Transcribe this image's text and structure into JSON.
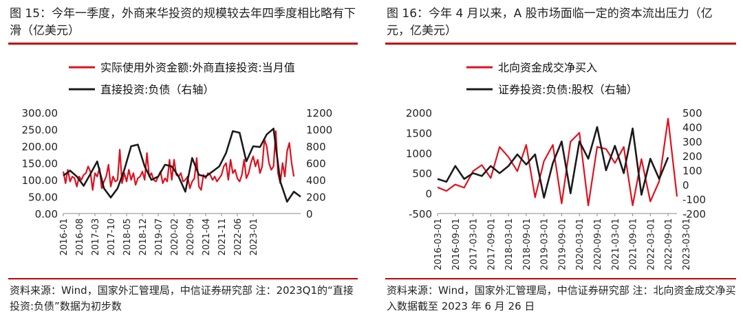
{
  "panels": [
    {
      "title": "图 15：今年一季度，外商来华投资的规模较去年四季度相比略有下滑（亿美元）",
      "source": "资料来源：Wind，国家外汇管理局，中信证券研究部 注：2023Q1的“直接投资:负债”数据为初步数"
    },
    {
      "title": "图 16：今年 4 月以来，A 股市场面临一定的资本流出压力（亿元，亿美元）",
      "source": "资料来源：Wind，国家外汇管理局，中信证券研究部 注：北向资金成交净买入数据截至 2023 年 6 月 26 日"
    }
  ],
  "colors": {
    "red": "#e0101e",
    "black": "#1a1a1a",
    "accent": "#c00000"
  },
  "chart_data": [
    {
      "type": "line",
      "legend": "top-left",
      "grid": false,
      "ylim": [
        0,
        300
      ],
      "y2lim": [
        0,
        1200
      ],
      "yticks": [
        "0.00",
        "50.00",
        "100.00",
        "150.00",
        "200.00",
        "250.00",
        "300.00"
      ],
      "y2ticks": [
        "0",
        "200",
        "400",
        "600",
        "800",
        "1000",
        "1200"
      ],
      "xtick_labels": [
        "2016-01",
        "2016-08",
        "2017-03",
        "2017-10",
        "2018-05",
        "2018-12",
        "2019-07",
        "2020-02",
        "2020-09",
        "2021-04",
        "2021-11",
        "2022-06",
        "2023-01"
      ],
      "series": [
        {
          "name": "实际使用外资金额:外商直接投资:当月值",
          "axis": "left",
          "color": "red",
          "x_start": "2016-01",
          "frequency": "monthly",
          "values": [
            125,
            90,
            130,
            95,
            110,
            105,
            80,
            110,
            100,
            115,
            120,
            140,
            125,
            70,
            120,
            110,
            135,
            75,
            95,
            110,
            145,
            80,
            110,
            95,
            100,
            190,
            90,
            120,
            95,
            130,
            100,
            120,
            85,
            105,
            110,
            125,
            100,
            180,
            110,
            120,
            100,
            95,
            110,
            125,
            90,
            105,
            95,
            160,
            100,
            160,
            115,
            110,
            120,
            95,
            100,
            110,
            75,
            95,
            105,
            165,
            80,
            70,
            115,
            105,
            120,
            115,
            100,
            110,
            95,
            105,
            115,
            140,
            150,
            100,
            160,
            120,
            130,
            105,
            95,
            115,
            160,
            105,
            120,
            150,
            170,
            140,
            160,
            120,
            140,
            220,
            200,
            150,
            130,
            140,
            245,
            120,
            90,
            150,
            110,
            185,
            210,
            150,
            110
          ]
        },
        {
          "name": "直接投资:负债（右轴）",
          "axis": "right",
          "color": "black",
          "x_start": "2016-01",
          "frequency": "quarterly",
          "values": [
            450,
            510,
            440,
            330,
            470,
            620,
            300,
            190,
            300,
            520,
            800,
            820,
            560,
            400,
            440,
            580,
            560,
            440,
            260,
            660,
            460,
            440,
            500,
            560,
            720,
            980,
            960,
            620,
            800,
            790,
            940,
            1010,
            380,
            140,
            260,
            200
          ]
        }
      ]
    },
    {
      "type": "line",
      "legend": "top-left",
      "grid": false,
      "ylim": [
        -500,
        2000
      ],
      "y2lim": [
        -200,
        500
      ],
      "yticks": [
        "-500",
        "0",
        "500",
        "1000",
        "1500",
        "2000"
      ],
      "y2ticks": [
        "-200",
        "-100",
        "0",
        "100",
        "200",
        "300",
        "400",
        "500"
      ],
      "xtick_labels": [
        "2016-03-01",
        "2016-09-01",
        "2017-03-01",
        "2017-09-01",
        "2018-03-01",
        "2018-09-01",
        "2019-03-01",
        "2019-09-01",
        "2020-03-01",
        "2020-09-01",
        "2021-03-01",
        "2021-09-01",
        "2022-03-01",
        "2022-09-01",
        "2023-03-01"
      ],
      "series": [
        {
          "name": "北向资金成交净买入",
          "axis": "left",
          "color": "red",
          "x_start": "2016-03-01",
          "frequency": "quarterly",
          "values": [
            150,
            60,
            220,
            140,
            550,
            700,
            380,
            1150,
            900,
            550,
            1200,
            -100,
            800,
            1200,
            -250,
            1280,
            1500,
            -300,
            1150,
            1100,
            750,
            1150,
            -300,
            850,
            -200,
            300,
            1850,
            -80
          ]
        },
        {
          "name": "证券投资:负债:股权（右轴）",
          "axis": "right",
          "color": "black",
          "x_start": "2016-03-01",
          "frequency": "quarterly",
          "values": [
            40,
            20,
            130,
            40,
            80,
            60,
            130,
            80,
            130,
            210,
            140,
            210,
            -90,
            150,
            300,
            -60,
            300,
            180,
            400,
            100,
            270,
            80,
            390,
            -70,
            180,
            40,
            190
          ]
        }
      ]
    }
  ]
}
